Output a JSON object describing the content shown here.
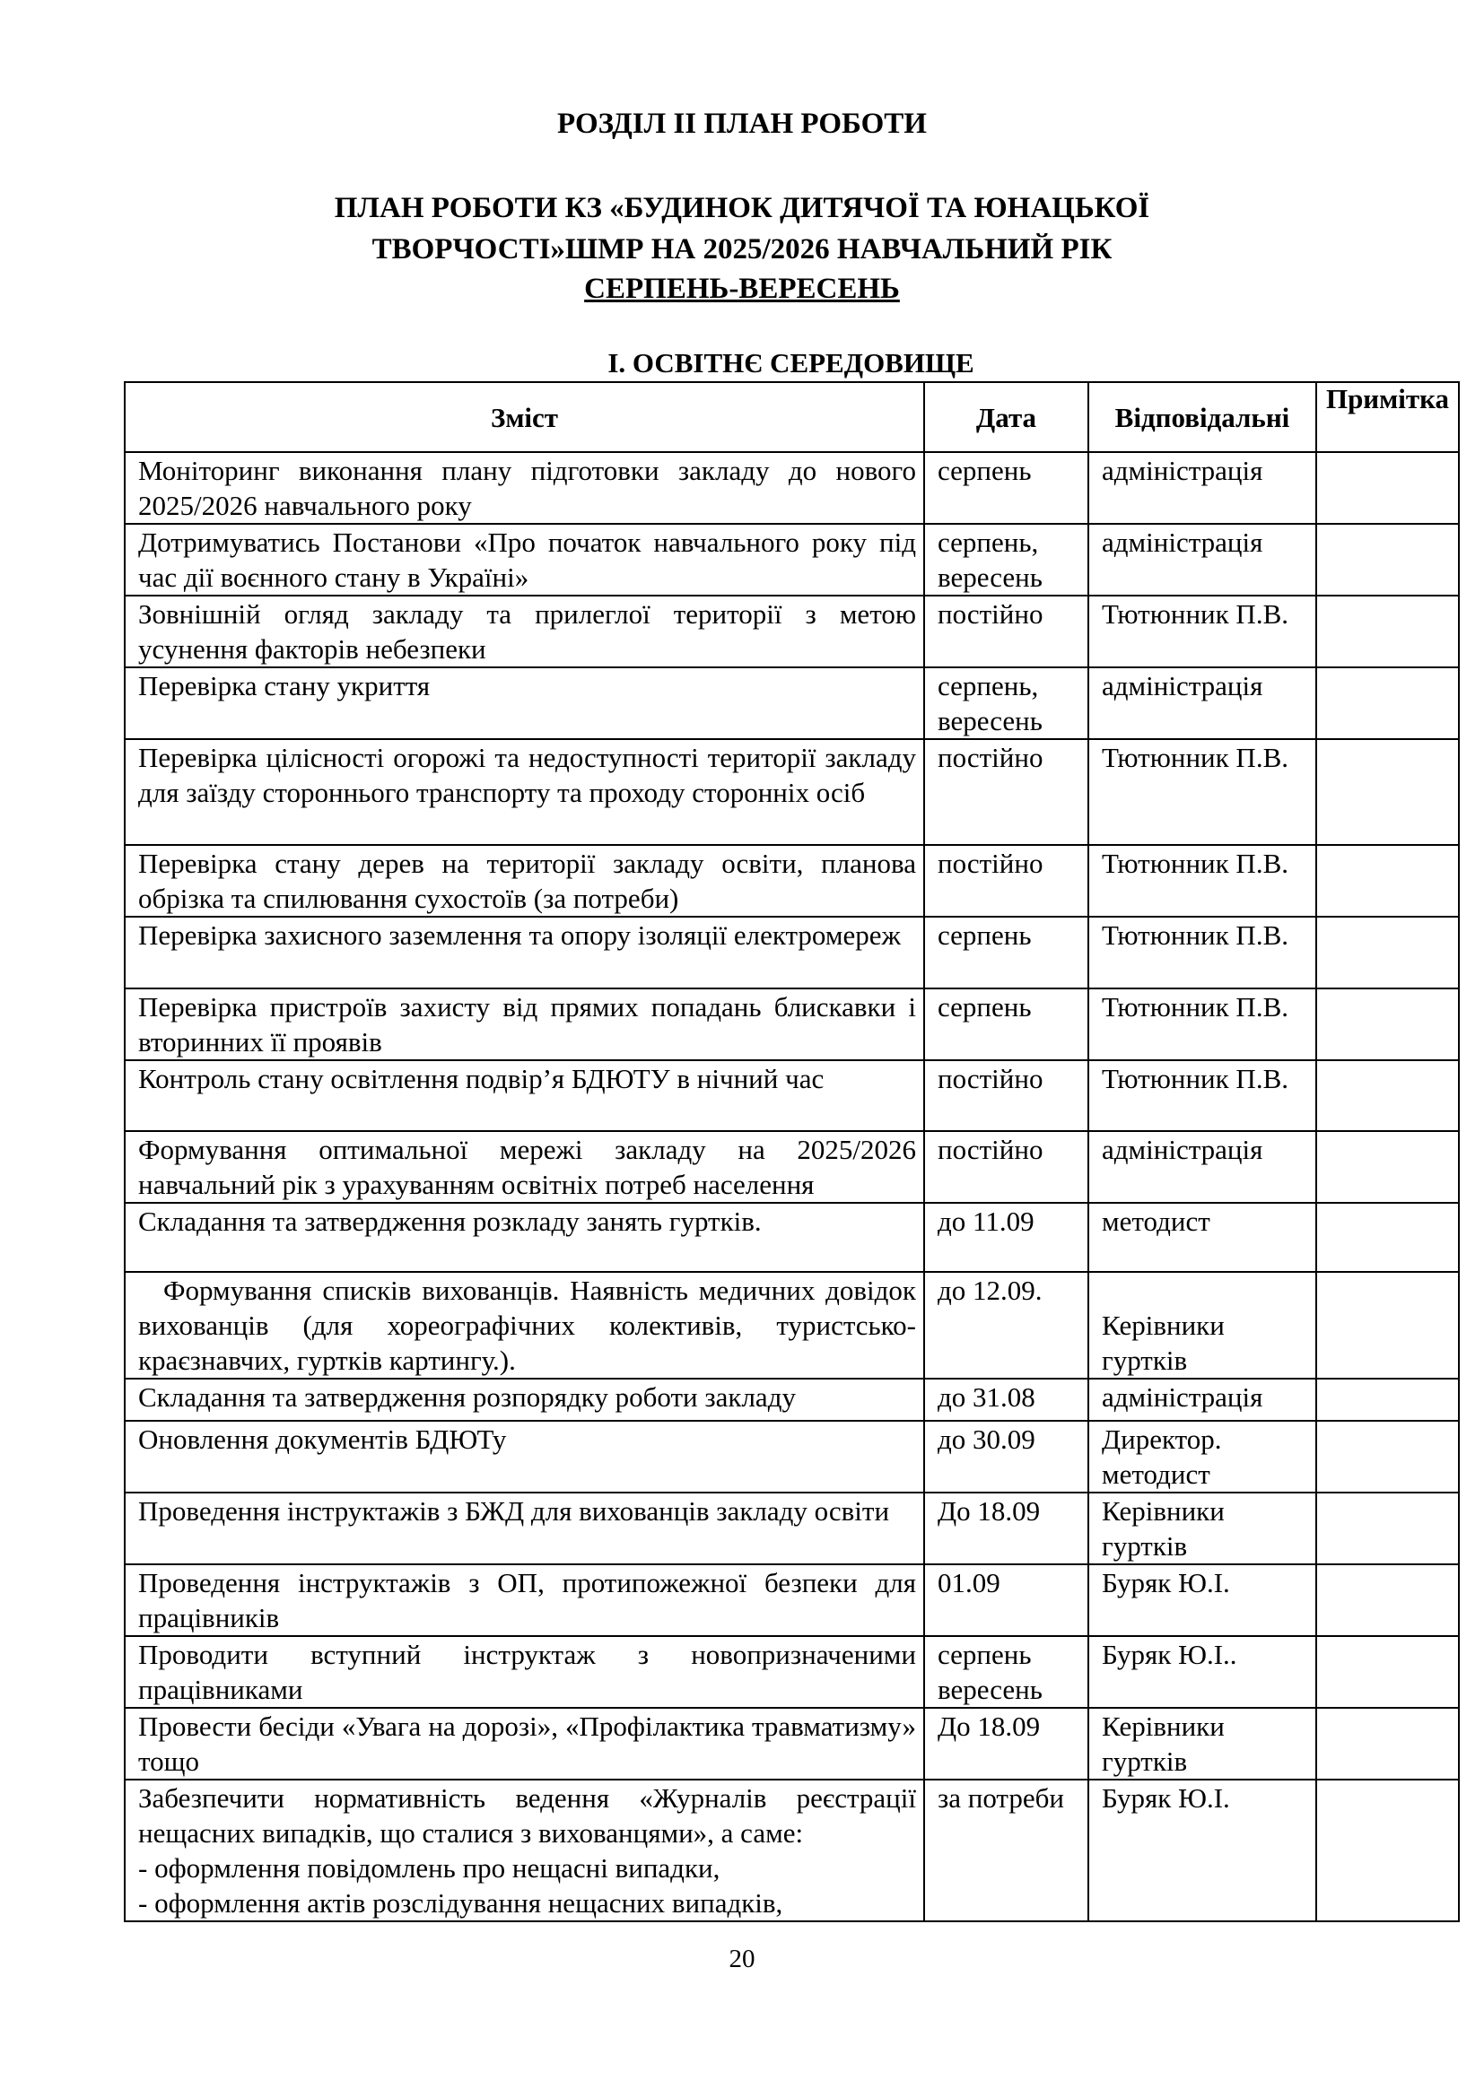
{
  "section_title": "РОЗДІЛ ІІ ПЛАН РОБОТИ",
  "plan_title_line1": "ПЛАН РОБОТИ КЗ «БУДИНОК ДИТЯЧОЇ ТА ЮНАЦЬКОЇ",
  "plan_title_line2": "ТВОРЧОСТІ»ШМР НА 2025/2026 НАВЧАЛЬНИЙ РІК",
  "period": "СЕРПЕНЬ-ВЕРЕСЕНЬ",
  "subsection": "І. ОСВІТНЄ СЕРЕДОВИЩЕ",
  "table": {
    "headers": [
      "Зміст",
      "Дата",
      "Відповідальні",
      "Примітка"
    ],
    "rows": [
      {
        "content": "Моніторинг виконання плану підготовки закладу до нового 2025/2026 навчального року",
        "date": "серпень",
        "responsible": "адміністрація",
        "note": ""
      },
      {
        "content": "Дотримуватись Постанови «Про початок навчального року під час дії воєнного стану в Україні»",
        "date": "серпень, вересень",
        "responsible": "адміністрація",
        "note": ""
      },
      {
        "content": "Зовнішній огляд  закладу та прилеглої території з метою усунення факторів небезпеки",
        "date": "постійно",
        "responsible": "Тютюнник П.В.",
        "note": ""
      },
      {
        "content": "Перевірка стану укриття",
        "date": "серпень, вересень",
        "responsible": "адміністрація",
        "note": ""
      },
      {
        "content": "Перевірка цілісності огорожі та недоступності території закладу для заїзду стороннього транспорту та проходу сторонніх осіб",
        "date": "постійно",
        "responsible": "Тютюнник П.В.",
        "note": ""
      },
      {
        "content": "Перевірка стану дерев на території закладу освіти, планова обрізка та спилювання сухостоїв (за потреби)",
        "date": "постійно",
        "responsible": "Тютюнник П.В.",
        "note": ""
      },
      {
        "content": "Перевірка захисного заземлення та опору ізоляції електромереж",
        "date": "серпень",
        "responsible": "Тютюнник П.В.",
        "note": ""
      },
      {
        "content": "Перевірка пристроїв захисту від прямих попадань блискавки і вторинних її проявів",
        "date": "серпень",
        "responsible": "Тютюнник П.В.",
        "note": ""
      },
      {
        "content": "Контроль стану освітлення подвір’я БДЮТУ в нічний час",
        "date": "постійно",
        "responsible": "Тютюнник П.В.",
        "note": ""
      },
      {
        "content": "Формування оптимальної мережі закладу на 2025/2026 навчальний рік з урахуванням освітніх потреб населення",
        "date": "постійно",
        "responsible": "адміністрація",
        "note": ""
      },
      {
        "content": "Складання та затвердження розкладу занять гуртків.",
        "date": "до 11.09",
        "responsible": "методист",
        "note": ""
      },
      {
        "content": "Формування списків вихованців. Наявність медичних довідок вихованців (для хореографічних колективів, туристсько-краєзнавчих,  гуртків картингу.).",
        "date": "до 12.09.",
        "responsible": "Керівники гуртків",
        "note": ""
      },
      {
        "content": "Складання та затвердження розпорядку роботи закладу",
        "date": "до 31.08",
        "responsible": "адміністрація",
        "note": ""
      },
      {
        "content": "Оновлення документів БДЮТу",
        "date": "до 30.09",
        "responsible": "Директор. методист",
        "note": ""
      },
      {
        "content": "Проведення інструктажів з БЖД для вихованців закладу освіти",
        "date": "До 18.09",
        "responsible": "Керівники гуртків",
        "note": ""
      },
      {
        "content": "Проведення інструктажів з ОП, протипожежної безпеки для працівників",
        "date": "01.09",
        "responsible": "Буряк Ю.І.",
        "note": ""
      },
      {
        "content": "Проводити вступний інструктаж з новопризначеними працівниками",
        "date": "серпень вересень",
        "responsible": "Буряк Ю.І..",
        "note": ""
      },
      {
        "content": "Провести бесіди «Увага на дорозі», «Профілактика травматизму» тощо",
        "date": "До 18.09",
        "responsible": "Керівники гуртків",
        "note": ""
      },
      {
        "content": "Забезпечити нормативність ведення «Журналів реєстрації нещасних випадків, що сталися з вихованцями», а саме:\n- оформлення повідомлень про нещасні випадки,\n- оформлення актів розслідування нещасних випадків,",
        "date": "за потреби",
        "responsible": "Буряк Ю.І.",
        "note": ""
      }
    ]
  },
  "page_number": "20"
}
